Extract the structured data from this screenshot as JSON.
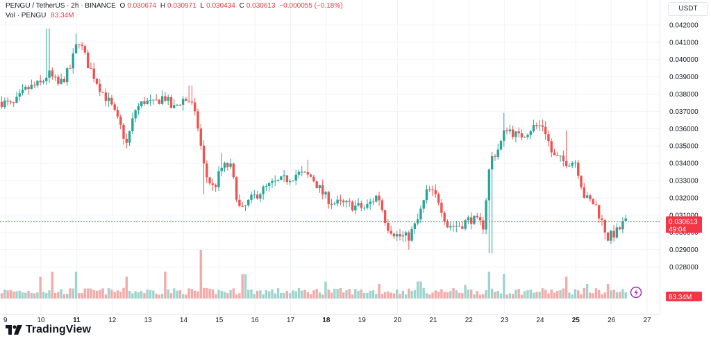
{
  "header": {
    "symbol": "PENGU / TetherUS · 2h · BINANCE",
    "o_label": "O",
    "o_value": "0.030674",
    "h_label": "H",
    "h_value": "0.030971",
    "l_label": "L",
    "l_value": "0.030434",
    "c_label": "C",
    "c_value": "0.030613",
    "change": "−0.000055 (−0.18%)"
  },
  "volume_legend": {
    "label": "Vol · PENGU",
    "value": "83.34M"
  },
  "unit_button": "USDT",
  "last_price": {
    "value": "0.030613",
    "countdown": "49:04"
  },
  "last_volume": "83.34M",
  "logo_text": "TradingView",
  "icons": {
    "flash": "lightning-icon",
    "logo": "tradingview-logo-icon"
  },
  "colors": {
    "up": "#26a69a",
    "down": "#ef5350",
    "vol_up": "#9fd3cd",
    "vol_down": "#f4aaa9",
    "price_tag": "#f23645",
    "grid": "#f0f3fa"
  },
  "chart_data": {
    "type": "candlestick",
    "symbol": "PENGU/USDT",
    "interval": "2h",
    "y_ticks": [
      "0.042000",
      "0.041000",
      "0.040000",
      "0.039000",
      "0.038000",
      "0.037000",
      "0.036000",
      "0.035000",
      "0.034000",
      "0.033000",
      "0.032000",
      "0.031000",
      "0.030000",
      "0.029000",
      "0.028000"
    ],
    "ylim": [
      0.0277,
      0.0428
    ],
    "x_ticks": [
      {
        "label": "9",
        "day": 9,
        "bold": false
      },
      {
        "label": "10",
        "day": 10,
        "bold": false
      },
      {
        "label": "11",
        "day": 11,
        "bold": true
      },
      {
        "label": "12",
        "day": 12,
        "bold": false
      },
      {
        "label": "13",
        "day": 13,
        "bold": false
      },
      {
        "label": "14",
        "day": 14,
        "bold": false
      },
      {
        "label": "15",
        "day": 15,
        "bold": false
      },
      {
        "label": "16",
        "day": 16,
        "bold": false
      },
      {
        "label": "17",
        "day": 17,
        "bold": false
      },
      {
        "label": "18",
        "day": 18,
        "bold": true
      },
      {
        "label": "19",
        "day": 19,
        "bold": false
      },
      {
        "label": "20",
        "day": 20,
        "bold": false
      },
      {
        "label": "21",
        "day": 21,
        "bold": false
      },
      {
        "label": "22",
        "day": 22,
        "bold": false
      },
      {
        "label": "23",
        "day": 23,
        "bold": false
      },
      {
        "label": "24",
        "day": 24,
        "bold": false
      },
      {
        "label": "25",
        "day": 25,
        "bold": true
      },
      {
        "label": "26",
        "day": 26,
        "bold": false
      },
      {
        "label": "27",
        "day": 27,
        "bold": false
      }
    ],
    "xlim_days": [
      8.85,
      27.35
    ],
    "price_path": [
      [
        8.85,
        0.0376
      ],
      [
        9.2,
        0.0373
      ],
      [
        9.6,
        0.0383
      ],
      [
        10.0,
        0.0386
      ],
      [
        10.2,
        0.0392
      ],
      [
        10.5,
        0.0385
      ],
      [
        10.8,
        0.0394
      ],
      [
        11.05,
        0.0412
      ],
      [
        11.3,
        0.0398
      ],
      [
        11.7,
        0.0382
      ],
      [
        11.95,
        0.0374
      ],
      [
        12.25,
        0.036
      ],
      [
        12.4,
        0.0351
      ],
      [
        12.65,
        0.0371
      ],
      [
        12.9,
        0.0376
      ],
      [
        13.15,
        0.0374
      ],
      [
        13.45,
        0.0379
      ],
      [
        13.7,
        0.0371
      ],
      [
        13.95,
        0.0377
      ],
      [
        14.2,
        0.0376
      ],
      [
        14.4,
        0.0361
      ],
      [
        14.6,
        0.0334
      ],
      [
        14.85,
        0.0325
      ],
      [
        15.05,
        0.0337
      ],
      [
        15.3,
        0.0339
      ],
      [
        15.6,
        0.0311
      ],
      [
        15.8,
        0.0317
      ],
      [
        16.1,
        0.0323
      ],
      [
        16.5,
        0.0328
      ],
      [
        16.9,
        0.0331
      ],
      [
        17.2,
        0.0334
      ],
      [
        17.6,
        0.0332
      ],
      [
        17.95,
        0.0321
      ],
      [
        18.2,
        0.0317
      ],
      [
        18.6,
        0.0316
      ],
      [
        19.1,
        0.0314
      ],
      [
        19.45,
        0.0322
      ],
      [
        19.7,
        0.0304
      ],
      [
        20.0,
        0.0298
      ],
      [
        20.3,
        0.0297
      ],
      [
        20.55,
        0.0306
      ],
      [
        20.85,
        0.0325
      ],
      [
        21.15,
        0.0319
      ],
      [
        21.4,
        0.0304
      ],
      [
        21.75,
        0.0304
      ],
      [
        22.05,
        0.0308
      ],
      [
        22.4,
        0.0304
      ],
      [
        22.6,
        0.0342
      ],
      [
        22.85,
        0.0349
      ],
      [
        23.05,
        0.0361
      ],
      [
        23.4,
        0.0355
      ],
      [
        23.8,
        0.0361
      ],
      [
        24.1,
        0.0362
      ],
      [
        24.35,
        0.0344
      ],
      [
        24.65,
        0.0341
      ],
      [
        25.0,
        0.0341
      ],
      [
        25.25,
        0.032
      ],
      [
        25.55,
        0.0316
      ],
      [
        25.9,
        0.0297
      ],
      [
        26.2,
        0.0301
      ],
      [
        26.35,
        0.0306
      ],
      [
        26.5,
        0.0306
      ]
    ],
    "spikes": [
      {
        "day": 10.2,
        "high": 0.0418
      },
      {
        "day": 11.0,
        "high": 0.0415
      },
      {
        "day": 14.2,
        "high": 0.0385
      },
      {
        "day": 14.55,
        "low": 0.0322
      },
      {
        "day": 15.1,
        "high": 0.0346
      },
      {
        "day": 17.5,
        "high": 0.0342
      },
      {
        "day": 20.3,
        "low": 0.029
      },
      {
        "day": 22.6,
        "low": 0.0288
      },
      {
        "day": 23.0,
        "high": 0.0369
      },
      {
        "day": 24.75,
        "high": 0.0359
      },
      {
        "day": 25.85,
        "low": 0.0296
      }
    ],
    "volume_spikes": [
      {
        "day": 10.0,
        "value": 0.45
      },
      {
        "day": 10.35,
        "value": 0.55
      },
      {
        "day": 11.0,
        "value": 0.55
      },
      {
        "day": 12.4,
        "value": 0.45
      },
      {
        "day": 13.5,
        "value": 0.55
      },
      {
        "day": 14.5,
        "value": 1.0
      },
      {
        "day": 15.7,
        "value": 0.5
      },
      {
        "day": 18.0,
        "value": 0.35
      },
      {
        "day": 19.5,
        "value": 0.3
      },
      {
        "day": 20.6,
        "value": 0.35
      },
      {
        "day": 21.9,
        "value": 0.28
      },
      {
        "day": 22.55,
        "value": 0.55
      },
      {
        "day": 22.95,
        "value": 0.5
      },
      {
        "day": 24.7,
        "value": 0.45
      },
      {
        "day": 25.3,
        "value": 0.3
      },
      {
        "day": 25.9,
        "value": 0.3
      }
    ],
    "last_price_value": 0.030613,
    "last_volume_value": 83.34
  }
}
